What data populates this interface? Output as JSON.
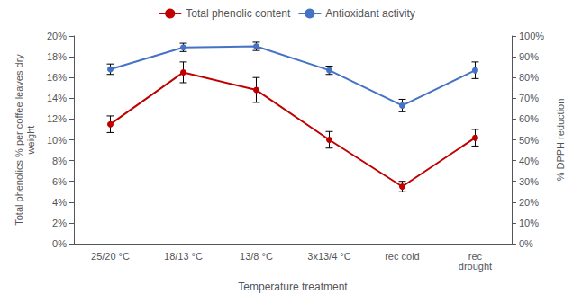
{
  "chart_data": {
    "type": "line",
    "xlabel": "Temperature treatment",
    "ylabel": "Total phenolics % per coffee leaves dry\nweight",
    "y2label": "% DPPH reduction",
    "categories": [
      "25/20 °C",
      "18/13 °C",
      "13/8 °C",
      "3x13/4 °C",
      "rec cold",
      "rec\ndrought"
    ],
    "series": [
      {
        "name": "Total phenolic content",
        "color": "#c00000",
        "marker": "circle",
        "values": [
          0.115,
          0.165,
          0.148,
          0.1,
          0.055,
          0.102
        ],
        "errors": [
          0.008,
          0.01,
          0.012,
          0.008,
          0.005,
          0.008
        ]
      },
      {
        "name": "Antioxidant activity",
        "color": "#4472c4",
        "marker": "circle",
        "axis": "y2",
        "values": [
          0.84,
          0.945,
          0.95,
          0.835,
          0.665,
          0.835
        ],
        "errors": [
          0.025,
          0.02,
          0.02,
          0.02,
          0.03,
          0.04
        ]
      }
    ],
    "ylim": [
      0,
      0.2
    ],
    "yticks": [
      {
        "value": 0.0,
        "label": "0%"
      },
      {
        "value": 0.02,
        "label": "2%"
      },
      {
        "value": 0.04,
        "label": "4%"
      },
      {
        "value": 0.06,
        "label": "6%"
      },
      {
        "value": 0.08,
        "label": "8%"
      },
      {
        "value": 0.1,
        "label": "10%"
      },
      {
        "value": 0.12,
        "label": "12%"
      },
      {
        "value": 0.14,
        "label": "14%"
      },
      {
        "value": 0.16,
        "label": "16%"
      },
      {
        "value": 0.18,
        "label": "18%"
      },
      {
        "value": 0.2,
        "label": "20%"
      }
    ],
    "y2lim": [
      0,
      1.0
    ],
    "y2ticks": [
      {
        "value": 0.0,
        "label": "0%"
      },
      {
        "value": 0.1,
        "label": "10%"
      },
      {
        "value": 0.2,
        "label": "20%"
      },
      {
        "value": 0.3,
        "label": "30%"
      },
      {
        "value": 0.4,
        "label": "40%"
      },
      {
        "value": 0.5,
        "label": "50%"
      },
      {
        "value": 0.6,
        "label": "60%"
      },
      {
        "value": 0.7,
        "label": "70%"
      },
      {
        "value": 0.8,
        "label": "80%"
      },
      {
        "value": 0.9,
        "label": "90%"
      },
      {
        "value": 1.0,
        "label": "100%"
      }
    ],
    "grid": false,
    "legend": "top"
  }
}
